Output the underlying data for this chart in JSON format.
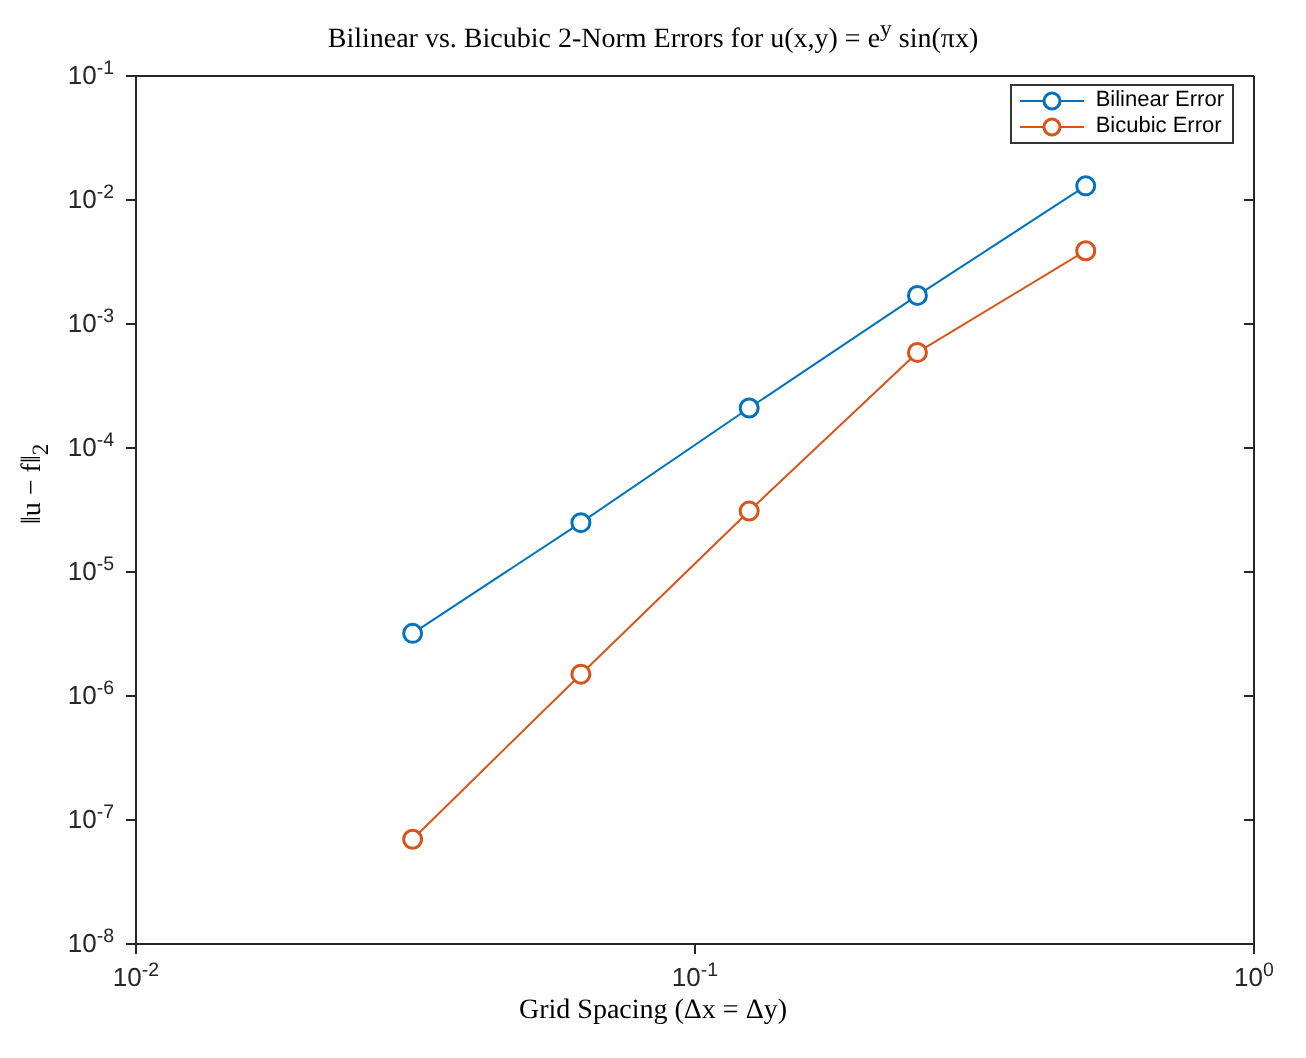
{
  "chart_data": {
    "type": "line",
    "title": "Bilinear vs. Bicubic 2-Norm Errors for u(x,y) = e$^{y}$ sin(πx)",
    "xlabel": "Grid Spacing (Δx = Δy)",
    "ylabel": "‖u − f‖$_{2}$",
    "x": [
      0.03125,
      0.0625,
      0.125,
      0.25,
      0.5
    ],
    "series": [
      {
        "name": "Bilinear Error",
        "color": "#0072bd",
        "values": [
          3.2e-06,
          2.5e-05,
          0.00021,
          0.0017,
          0.013
        ]
      },
      {
        "name": "Bicubic Error",
        "color": "#d95319",
        "values": [
          7e-08,
          1.5e-06,
          3.1e-05,
          0.00059,
          0.0039
        ]
      }
    ],
    "log": "xy",
    "xlim": [
      0.01,
      1
    ],
    "ylim": [
      1e-08,
      0.1
    ],
    "xticks": [
      {
        "value": 0.01,
        "label": "10$^{-2}$"
      },
      {
        "value": 0.1,
        "label": "10$^{-1}$"
      },
      {
        "value": 1,
        "label": "10$^{0}$"
      }
    ],
    "yticks": [
      {
        "value": 1e-08,
        "label": "10$^{-8}$"
      },
      {
        "value": 1e-07,
        "label": "10$^{-7}$"
      },
      {
        "value": 1e-06,
        "label": "10$^{-6}$"
      },
      {
        "value": 1e-05,
        "label": "10$^{-5}$"
      },
      {
        "value": 0.0001,
        "label": "10$^{-4}$"
      },
      {
        "value": 0.001,
        "label": "10$^{-3}$"
      },
      {
        "value": 0.01,
        "label": "10$^{-2}$"
      },
      {
        "value": 0.1,
        "label": "10$^{-1}$"
      }
    ],
    "grid": false,
    "legend": "top right",
    "marker": "circle",
    "line_style": "solid"
  }
}
